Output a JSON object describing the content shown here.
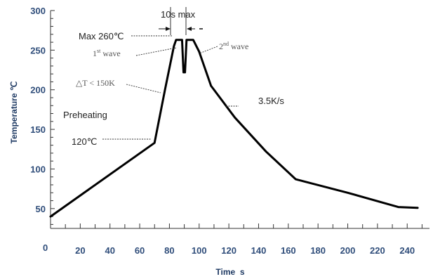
{
  "chart_data": {
    "type": "line",
    "xlabel": "Time  s",
    "ylabel": "Temperature ℃",
    "xlim": [
      0,
      255
    ],
    "ylim": [
      25,
      300
    ],
    "x_ticks": [
      20,
      40,
      60,
      80,
      100,
      120,
      140,
      160,
      180,
      200,
      220,
      240
    ],
    "x_minor_step": 10,
    "y_ticks": [
      50,
      100,
      150,
      200,
      250,
      300
    ],
    "y_minor_step": 10,
    "origin_label": "0",
    "grid": false,
    "series": [
      {
        "color": "#000000",
        "x": [
          0,
          70,
          77,
          83,
          84.5,
          85.5,
          88.5,
          89.5,
          90.5,
          91.5,
          94,
          95,
          96,
          100,
          108,
          124,
          145,
          165,
          200,
          234,
          247
        ],
        "y": [
          40,
          133,
          200,
          255,
          263,
          263,
          263,
          222,
          222,
          263,
          263,
          263,
          263,
          248,
          205,
          165,
          122,
          87,
          70,
          52,
          51
        ]
      }
    ],
    "annotations": {
      "duration": "10s max",
      "peak": "Max 260℃",
      "first_wave_num": "1",
      "first_wave_sup": "st",
      "first_wave_word": "wave",
      "second_wave_num": "2",
      "second_wave_sup": "nd",
      "second_wave_word": "wave",
      "delta_t": "△T < 150K",
      "preheating": "Preheating",
      "preheat_temp": "120℃",
      "cooling_rate": "3.5K/s"
    }
  }
}
